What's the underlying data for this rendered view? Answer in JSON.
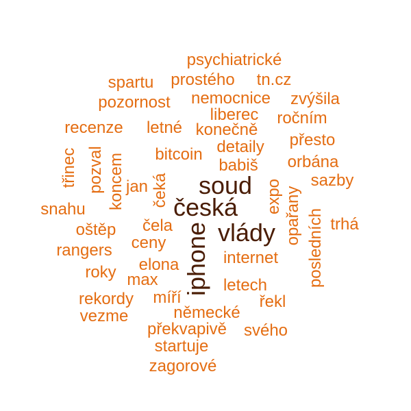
{
  "colors": {
    "background": "#ffffff",
    "small": "#e46d12",
    "dark": "#4a1d05"
  },
  "words": [
    {
      "text": "psychiatrické",
      "weight": 1,
      "vertical": false
    },
    {
      "text": "spartu",
      "weight": 1,
      "vertical": false
    },
    {
      "text": "prostého",
      "weight": 1,
      "vertical": false
    },
    {
      "text": "tn.cz",
      "weight": 1,
      "vertical": false
    },
    {
      "text": "pozornost",
      "weight": 1,
      "vertical": false
    },
    {
      "text": "nemocnice",
      "weight": 1,
      "vertical": false
    },
    {
      "text": "zvýšila",
      "weight": 1,
      "vertical": false
    },
    {
      "text": "liberec",
      "weight": 1,
      "vertical": false
    },
    {
      "text": "ročním",
      "weight": 1,
      "vertical": false
    },
    {
      "text": "recenze",
      "weight": 1,
      "vertical": false
    },
    {
      "text": "letné",
      "weight": 1,
      "vertical": false
    },
    {
      "text": "konečně",
      "weight": 1,
      "vertical": false
    },
    {
      "text": "přesto",
      "weight": 1,
      "vertical": false
    },
    {
      "text": "detaily",
      "weight": 1,
      "vertical": false
    },
    {
      "text": "třinec",
      "weight": 1,
      "vertical": true
    },
    {
      "text": "pozval",
      "weight": 1,
      "vertical": true
    },
    {
      "text": "koncem",
      "weight": 1,
      "vertical": true
    },
    {
      "text": "bitcoin",
      "weight": 1,
      "vertical": false
    },
    {
      "text": "orbána",
      "weight": 1,
      "vertical": false
    },
    {
      "text": "babiš",
      "weight": 1,
      "vertical": false
    },
    {
      "text": "soud",
      "weight": 2,
      "vertical": false
    },
    {
      "text": "sazby",
      "weight": 1,
      "vertical": false
    },
    {
      "text": "jan",
      "weight": 1,
      "vertical": false
    },
    {
      "text": "čeká",
      "weight": 1,
      "vertical": true
    },
    {
      "text": "expo",
      "weight": 1,
      "vertical": true
    },
    {
      "text": "opařany",
      "weight": 1,
      "vertical": true
    },
    {
      "text": "snahu",
      "weight": 1,
      "vertical": false
    },
    {
      "text": "česká",
      "weight": 2,
      "vertical": false
    },
    {
      "text": "posledních",
      "weight": 1,
      "vertical": true
    },
    {
      "text": "trhá",
      "weight": 1,
      "vertical": false
    },
    {
      "text": "oštěp",
      "weight": 1,
      "vertical": false
    },
    {
      "text": "čela",
      "weight": 1,
      "vertical": false
    },
    {
      "text": "vlády",
      "weight": 2,
      "vertical": false
    },
    {
      "text": "iphone",
      "weight": 2,
      "vertical": true
    },
    {
      "text": "ceny",
      "weight": 1,
      "vertical": false
    },
    {
      "text": "rangers",
      "weight": 1,
      "vertical": false
    },
    {
      "text": "internet",
      "weight": 1,
      "vertical": false
    },
    {
      "text": "elona",
      "weight": 1,
      "vertical": false
    },
    {
      "text": "roky",
      "weight": 1,
      "vertical": false
    },
    {
      "text": "max",
      "weight": 1,
      "vertical": false
    },
    {
      "text": "letech",
      "weight": 1,
      "vertical": false
    },
    {
      "text": "rekordy",
      "weight": 1,
      "vertical": false
    },
    {
      "text": "míří",
      "weight": 1,
      "vertical": false
    },
    {
      "text": "řekl",
      "weight": 1,
      "vertical": false
    },
    {
      "text": "německé",
      "weight": 1,
      "vertical": false
    },
    {
      "text": "vezme",
      "weight": 1,
      "vertical": false
    },
    {
      "text": "překvapivě",
      "weight": 1,
      "vertical": false
    },
    {
      "text": "svého",
      "weight": 1,
      "vertical": false
    },
    {
      "text": "startuje",
      "weight": 1,
      "vertical": false
    },
    {
      "text": "zagorové",
      "weight": 1,
      "vertical": false
    }
  ]
}
